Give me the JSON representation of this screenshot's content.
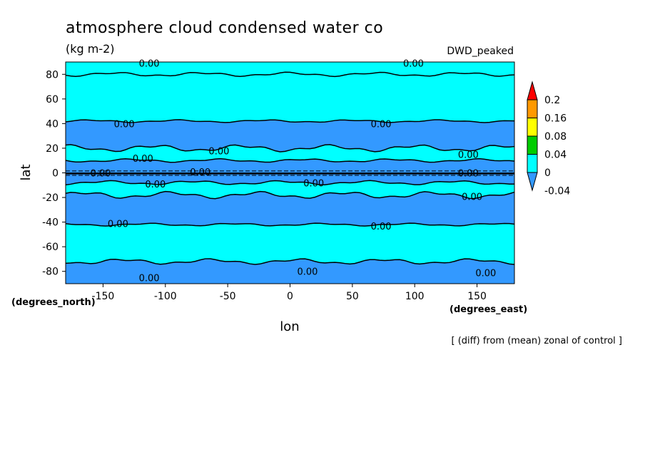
{
  "chart_data": {
    "type": "heatmap",
    "title": "atmosphere cloud condensed water co",
    "units": "(kg m-2)",
    "model": "DWD_peaked",
    "xlabel": "lon",
    "ylabel": "lat",
    "x_units": "(degrees_east)",
    "y_units": "(degrees_north)",
    "xlim": [
      -180,
      180
    ],
    "ylim": [
      -90,
      90
    ],
    "x_ticks": [
      -150,
      -100,
      -50,
      0,
      50,
      100,
      150
    ],
    "y_ticks": [
      80,
      60,
      40,
      20,
      0,
      -20,
      -40,
      -60,
      -80
    ],
    "note": "[ (diff) from (mean) zonal of control ]",
    "colorbar": {
      "levels": [
        "0.2",
        "0.16",
        "0.08",
        "0.04",
        "0",
        "-0.04"
      ],
      "colors": [
        "#ff0000",
        "#ff9900",
        "#ffff00",
        "#00cc00",
        "#00ffff",
        "#3399ff"
      ]
    },
    "contour_labels": [
      "0.00",
      "0.00",
      "0.00",
      "0.00",
      "0.00",
      "0.00",
      "0.00",
      "0.00",
      "0.00",
      "0.00",
      "0.00",
      "0.00",
      "0.00",
      "0.00",
      "0.00",
      "0.00",
      "0.00",
      "0.00"
    ],
    "bands": [
      {
        "lat_min": 80,
        "lat_max": 90,
        "value": "0"
      },
      {
        "lat_min": 42,
        "lat_max": 80,
        "value": "0"
      },
      {
        "lat_min": 20,
        "lat_max": 42,
        "value": "-0.04"
      },
      {
        "lat_min": 10,
        "lat_max": 20,
        "value": "0"
      },
      {
        "lat_min": -8,
        "lat_max": 10,
        "value": "-0.04"
      },
      {
        "lat_min": -18,
        "lat_max": -8,
        "value": "0"
      },
      {
        "lat_min": -42,
        "lat_max": -18,
        "value": "-0.04"
      },
      {
        "lat_min": -72,
        "lat_max": -42,
        "value": "0"
      },
      {
        "lat_min": -90,
        "lat_max": -72,
        "value": "-0.04"
      }
    ],
    "colors": {
      "negative": "#3399ff",
      "zero": "#00ffff"
    }
  }
}
